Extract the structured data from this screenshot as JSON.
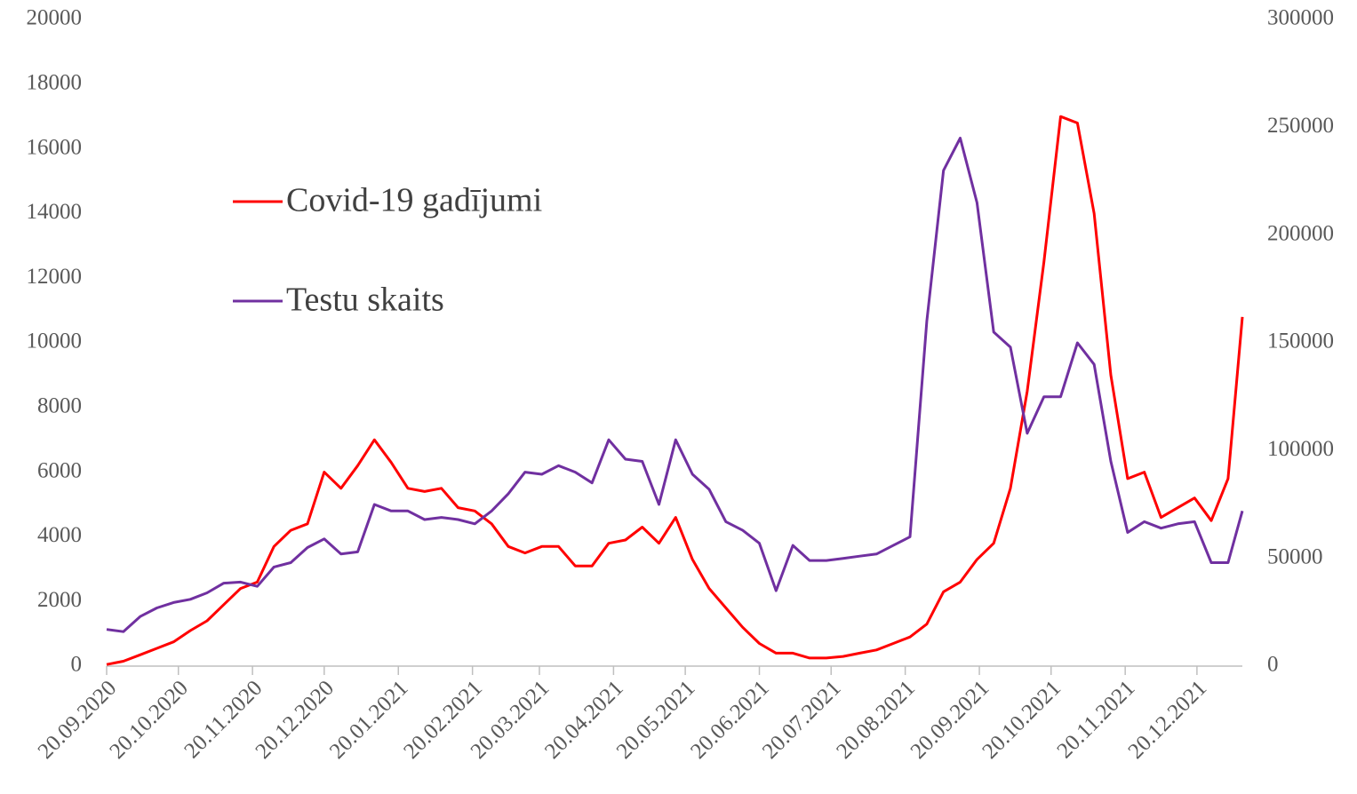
{
  "chart_data": {
    "type": "line",
    "x": [
      "20.09.2020",
      "27.09.2020",
      "04.10.2020",
      "11.10.2020",
      "18.10.2020",
      "25.10.2020",
      "01.11.2020",
      "08.11.2020",
      "15.11.2020",
      "22.11.2020",
      "29.11.2020",
      "06.12.2020",
      "13.12.2020",
      "20.12.2020",
      "27.12.2020",
      "03.01.2021",
      "10.01.2021",
      "17.01.2021",
      "24.01.2021",
      "31.01.2021",
      "07.02.2021",
      "14.02.2021",
      "21.02.2021",
      "28.02.2021",
      "07.03.2021",
      "14.03.2021",
      "21.03.2021",
      "28.03.2021",
      "04.04.2021",
      "11.04.2021",
      "18.04.2021",
      "25.04.2021",
      "02.05.2021",
      "09.05.2021",
      "16.05.2021",
      "23.05.2021",
      "30.05.2021",
      "06.06.2021",
      "13.06.2021",
      "20.06.2021",
      "27.06.2021",
      "04.07.2021",
      "11.07.2021",
      "18.07.2021",
      "25.07.2021",
      "01.08.2021",
      "08.08.2021",
      "15.08.2021",
      "22.08.2021",
      "29.08.2021",
      "05.09.2021",
      "12.09.2021",
      "19.09.2021",
      "26.09.2021",
      "03.10.2021",
      "10.10.2021",
      "17.10.2021",
      "24.10.2021",
      "31.10.2021",
      "07.11.2021",
      "14.11.2021",
      "21.11.2021",
      "28.11.2021",
      "05.12.2021",
      "12.12.2021",
      "19.12.2021",
      "26.12.2021",
      "02.01.2022",
      "08.01.2022"
    ],
    "series": [
      {
        "name": "Covid-19 gadījumi",
        "color": "#ff0000",
        "axis": "y",
        "values": [
          50,
          150,
          350,
          550,
          750,
          1100,
          1400,
          1900,
          2400,
          2600,
          3700,
          4200,
          4400,
          6000,
          5500,
          6200,
          7000,
          6300,
          5500,
          5400,
          5500,
          4900,
          4800,
          4400,
          3700,
          3500,
          3700,
          3700,
          3100,
          3100,
          3800,
          3900,
          4300,
          3800,
          4600,
          3300,
          2400,
          1800,
          1200,
          700,
          400,
          400,
          250,
          250,
          300,
          400,
          500,
          700,
          900,
          1300,
          2300,
          2600,
          3300,
          3800,
          5500,
          8500,
          12500,
          17000,
          16800,
          14000,
          9000,
          5800,
          6000,
          4600,
          4900,
          5200,
          4500,
          5800,
          10800
        ]
      },
      {
        "name": "Testu skaits",
        "color": "#7030a0",
        "axis": "y2",
        "values": [
          17000,
          16000,
          23000,
          27000,
          29500,
          31000,
          34000,
          38500,
          39000,
          37000,
          46000,
          48000,
          55000,
          59000,
          52000,
          53000,
          75000,
          72000,
          72000,
          68000,
          69000,
          68000,
          66000,
          72000,
          80000,
          90000,
          89000,
          93000,
          90000,
          85000,
          105000,
          96000,
          95000,
          75000,
          105000,
          89000,
          82000,
          67000,
          63000,
          57000,
          35000,
          56000,
          49000,
          49000,
          50000,
          51000,
          52000,
          56000,
          60000,
          160000,
          230000,
          245000,
          215000,
          155000,
          148000,
          108000,
          125000,
          125000,
          150000,
          140000,
          95000,
          62000,
          67000,
          64000,
          66000,
          67000,
          48000,
          48000,
          72000
        ]
      }
    ],
    "xlim": [
      "20.09.2020",
      "08.01.2022"
    ],
    "xticks": [
      "20.09.2020",
      "20.10.2020",
      "20.11.2020",
      "20.12.2020",
      "20.01.2021",
      "20.02.2021",
      "20.03.2021",
      "20.04.2021",
      "20.05.2021",
      "20.06.2021",
      "20.07.2021",
      "20.08.2021",
      "20.09.2021",
      "20.10.2021",
      "20.11.2021",
      "20.12.2021"
    ],
    "ylim": [
      0,
      20000
    ],
    "yticks": [
      0,
      2000,
      4000,
      6000,
      8000,
      10000,
      12000,
      14000,
      16000,
      18000,
      20000
    ],
    "y2lim": [
      0,
      300000
    ],
    "y2ticks": [
      0,
      50000,
      100000,
      150000,
      200000,
      250000,
      300000
    ]
  }
}
